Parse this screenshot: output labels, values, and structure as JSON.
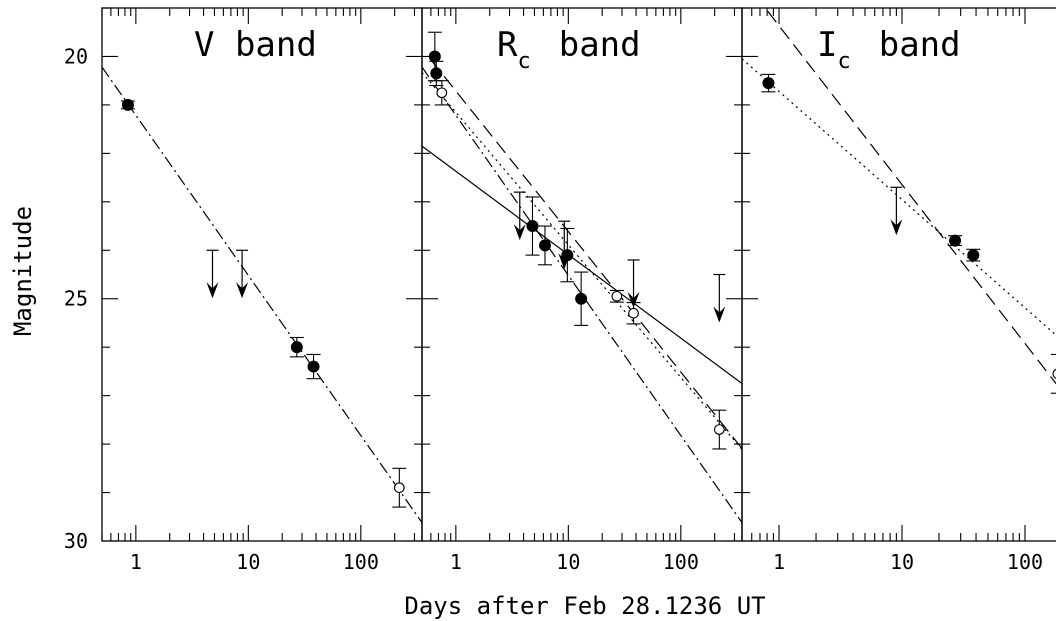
{
  "figure": {
    "xlabel": "Days after Feb 28.1236 UT",
    "ylabel": "Magnitude"
  },
  "chart_data": [
    {
      "type": "scatter",
      "title": "V band",
      "title_main": "V band",
      "title_sub": "",
      "xscale": "log",
      "xlim": [
        0.5,
        350
      ],
      "ylim": [
        30,
        19
      ],
      "y_inverted": true,
      "xticks": [
        1,
        10,
        100
      ],
      "xtick_labels": [
        "1",
        "10",
        "100"
      ],
      "yticks": [
        20,
        25,
        30
      ],
      "ytick_labels": [
        "20",
        "25",
        "30"
      ],
      "series": [
        {
          "style": "filled",
          "points": [
            {
              "x": 0.85,
              "y": 21.0,
              "err": 0.08
            },
            {
              "x": 27,
              "y": 26.0,
              "err": 0.2
            },
            {
              "x": 38,
              "y": 26.4,
              "err": 0.25
            }
          ]
        },
        {
          "style": "open",
          "points": [
            {
              "x": 220,
              "y": 28.9,
              "err": 0.4
            }
          ]
        },
        {
          "style": "upper_limit",
          "points": [
            {
              "x": 4.8,
              "y": 24.0
            },
            {
              "x": 8.8,
              "y": 24.0
            }
          ]
        }
      ],
      "fits": [
        {
          "style": "dash-dot",
          "x": [
            0.5,
            350
          ],
          "y": [
            20.22,
            29.62
          ]
        }
      ]
    },
    {
      "type": "scatter",
      "title": "Rc band",
      "title_main": "R",
      "title_sub": "c",
      "title_tail": "band",
      "xscale": "log",
      "xlim": [
        0.5,
        350
      ],
      "ylim": [
        30,
        19
      ],
      "y_inverted": true,
      "xticks": [
        1,
        10,
        100
      ],
      "xtick_labels": [
        "1",
        "10",
        "100"
      ],
      "yticks": [
        20,
        25,
        30
      ],
      "ytick_labels": [
        "",
        "",
        ""
      ],
      "series": [
        {
          "style": "filled",
          "points": [
            {
              "x": 0.65,
              "y": 20.0,
              "err": 0.5
            },
            {
              "x": 0.67,
              "y": 20.35,
              "err": 0.25
            },
            {
              "x": 4.8,
              "y": 23.5,
              "err": 0.6
            },
            {
              "x": 6.2,
              "y": 23.9,
              "err": 0.4
            },
            {
              "x": 9.8,
              "y": 24.1,
              "err": 0.55
            },
            {
              "x": 13,
              "y": 25.0,
              "err": 0.55
            }
          ]
        },
        {
          "style": "open",
          "points": [
            {
              "x": 0.75,
              "y": 20.75,
              "err": 0.25
            },
            {
              "x": 27,
              "y": 24.95,
              "err": 0.12
            },
            {
              "x": 38,
              "y": 25.3,
              "err": 0.22
            },
            {
              "x": 220,
              "y": 27.7,
              "err": 0.4
            }
          ]
        },
        {
          "style": "upper_limit",
          "points": [
            {
              "x": 3.7,
              "y": 22.8
            },
            {
              "x": 9.2,
              "y": 23.4
            },
            {
              "x": 38,
              "y": 24.2
            },
            {
              "x": 220,
              "y": 24.5
            }
          ]
        }
      ],
      "fits": [
        {
          "style": "solid",
          "x": [
            0.5,
            350
          ],
          "y": [
            21.85,
            26.75
          ]
        },
        {
          "style": "dashed",
          "x": [
            0.6,
            350
          ],
          "y": [
            20.07,
            28.09
          ]
        },
        {
          "style": "dotted",
          "x": [
            0.5,
            350
          ],
          "y": [
            20.33,
            28.11
          ]
        },
        {
          "style": "dash-dot",
          "x": [
            0.5,
            350
          ],
          "y": [
            20.22,
            29.62
          ]
        }
      ]
    },
    {
      "type": "scatter",
      "title": "Ic band",
      "title_main": "I",
      "title_sub": "c",
      "title_tail": "band",
      "xscale": "log",
      "xlim": [
        0.5,
        200
      ],
      "ylim": [
        30,
        19
      ],
      "y_inverted": true,
      "xticks": [
        1,
        10,
        100
      ],
      "xtick_labels": [
        "1",
        "10",
        "100"
      ],
      "yticks": [
        20,
        25,
        30
      ],
      "ytick_labels": [
        "",
        "",
        ""
      ],
      "series": [
        {
          "style": "filled",
          "points": [
            {
              "x": 0.82,
              "y": 20.55,
              "err": 0.18
            },
            {
              "x": 27,
              "y": 23.8,
              "err": 0.1
            },
            {
              "x": 38,
              "y": 24.1,
              "err": 0.12
            }
          ]
        },
        {
          "style": "open",
          "points": [
            {
              "x": 185,
              "y": 26.55,
              "err": 0.4
            }
          ]
        },
        {
          "style": "upper_limit",
          "points": [
            {
              "x": 9,
              "y": 22.7
            }
          ]
        }
      ],
      "fits": [
        {
          "style": "dashed",
          "x": [
            0.5,
            200
          ],
          "y": [
            18.38,
            26.91
          ]
        },
        {
          "style": "dotted",
          "x": [
            0.5,
            200
          ],
          "y": [
            20.05,
            25.86
          ]
        }
      ]
    }
  ]
}
